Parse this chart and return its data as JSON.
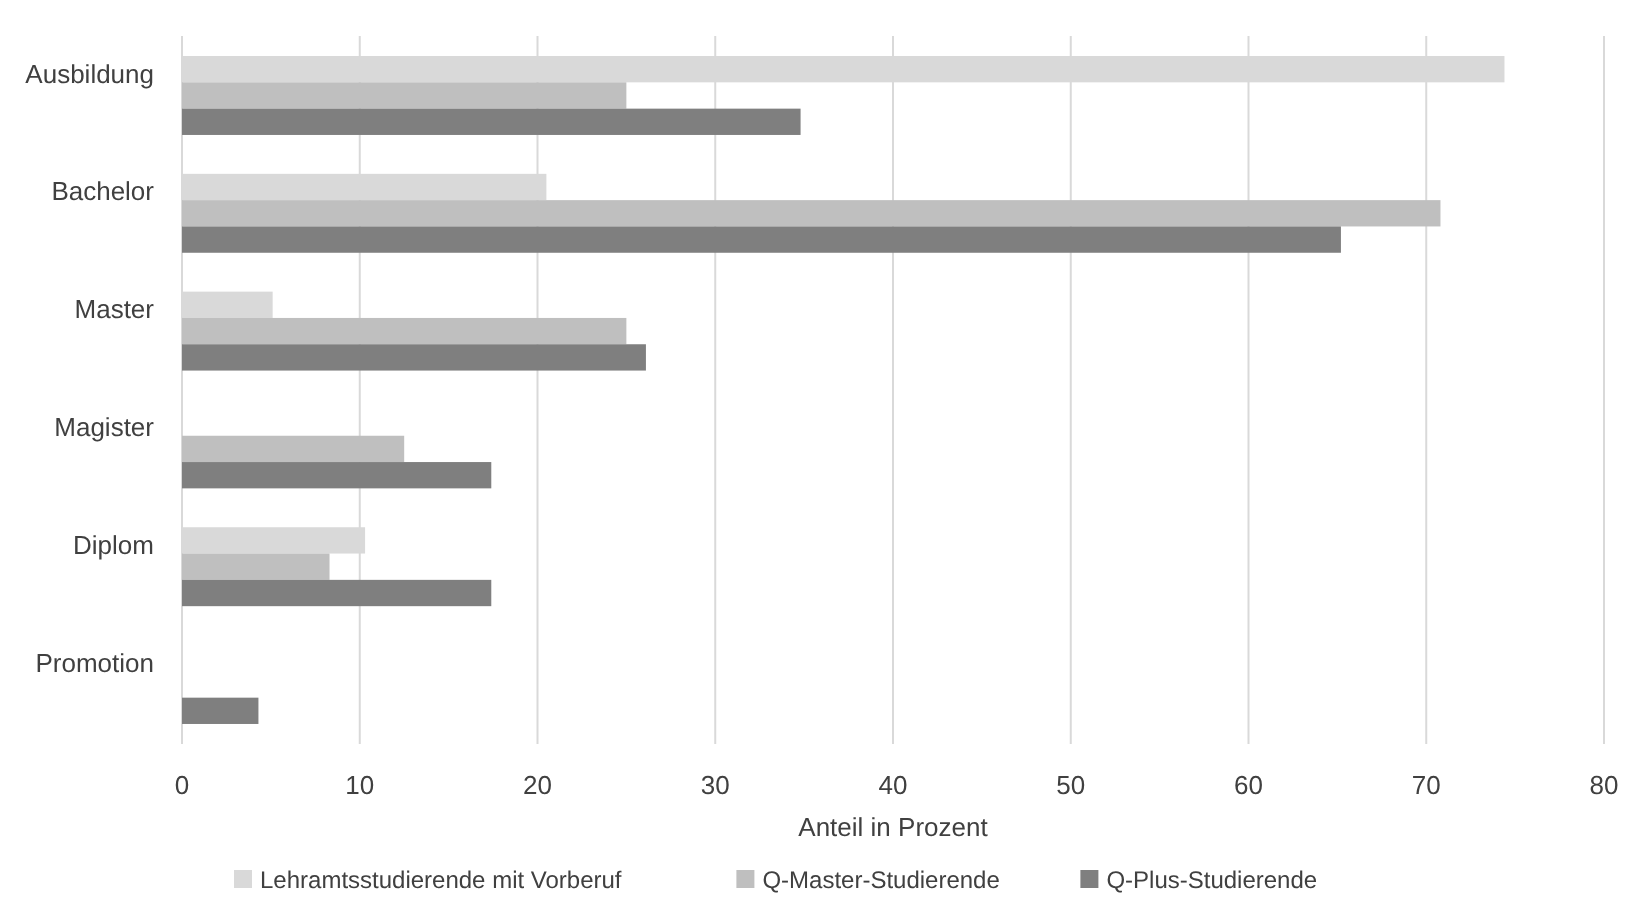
{
  "chart_data": {
    "type": "bar",
    "orientation": "horizontal",
    "xlabel": "Anteil in Prozent",
    "categories": [
      "Ausbildung",
      "Bachelor",
      "Master",
      "Magister",
      "Diplom",
      "Promotion"
    ],
    "series": [
      {
        "name": "Lehramtsstudierende mit Vorberuf",
        "color": "#d9d9d9",
        "values": [
          74.4,
          20.5,
          5.1,
          0,
          10.3,
          0
        ]
      },
      {
        "name": "Q-Master-Studierende",
        "color": "#bfbfbf",
        "values": [
          25,
          70.8,
          25,
          12.5,
          8.3,
          0
        ]
      },
      {
        "name": "Q-Plus-Studierende",
        "color": "#7f7f7f",
        "values": [
          34.8,
          65.2,
          26.1,
          17.4,
          17.4,
          4.3
        ]
      }
    ],
    "xlim": [
      0,
      80
    ],
    "xticks": [
      0,
      10,
      20,
      30,
      40,
      50,
      60,
      70,
      80
    ],
    "grid": "x",
    "legend": "bottom"
  }
}
